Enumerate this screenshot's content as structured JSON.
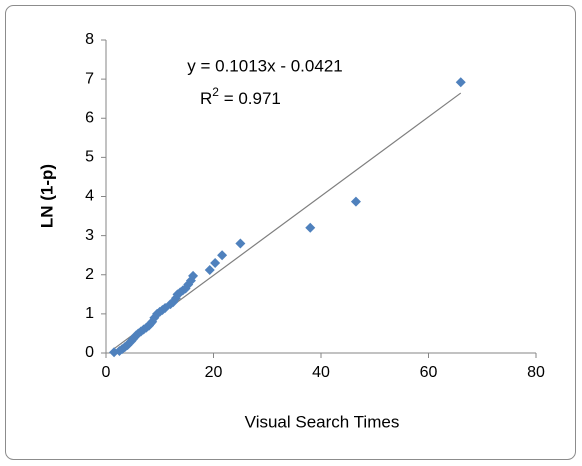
{
  "chart_data": {
    "type": "scatter",
    "x_label": "Visual Search Times",
    "y_label": "LN (1-p)",
    "equation": "y = 0.1013x - 0.0421",
    "r_squared": [
      "R",
      "2",
      " = 0.971"
    ],
    "series": [
      {
        "color": "#4f81bd",
        "x": [
          1.5,
          2.5,
          3,
          3.5,
          4,
          4.3,
          4.7,
          5,
          5.3,
          5.6,
          6,
          6.5,
          7,
          7.5,
          8,
          8.3,
          8.6,
          9,
          9.5,
          10,
          10.5,
          11,
          12,
          12.5,
          13,
          13.3,
          13.8,
          14.3,
          14.8,
          15.3,
          15.8,
          16.2,
          19.3,
          20.3,
          21.6,
          25,
          38,
          46.5,
          66
        ],
        "values": [
          0.02,
          0.05,
          0.1,
          0.15,
          0.2,
          0.25,
          0.3,
          0.35,
          0.4,
          0.45,
          0.5,
          0.55,
          0.6,
          0.65,
          0.7,
          0.75,
          0.8,
          0.9,
          1.0,
          1.05,
          1.1,
          1.15,
          1.25,
          1.3,
          1.4,
          1.5,
          1.55,
          1.6,
          1.65,
          1.75,
          1.85,
          1.97,
          2.12,
          2.3,
          2.5,
          2.8,
          3.2,
          3.87,
          6.92
        ]
      }
    ],
    "trendline": {
      "slope": 0.1013,
      "intercept": -0.0421,
      "color": "#7f7f7f"
    },
    "xlim": [
      0,
      80
    ],
    "xticks": [
      0,
      20,
      40,
      60,
      80
    ],
    "ylim": [
      0,
      8
    ],
    "yticks": [
      0,
      1,
      2,
      3,
      4,
      5,
      6,
      7,
      8
    ],
    "grid": false
  }
}
